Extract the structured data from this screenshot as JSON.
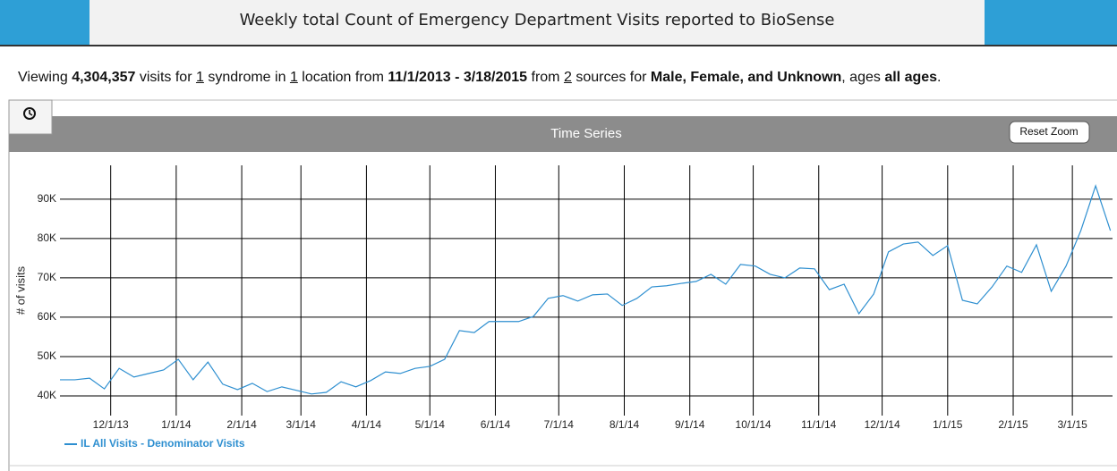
{
  "header": {
    "title": "Weekly total Count of Emergency Department Visits reported to BioSense"
  },
  "summary": [
    "Viewing",
    "4,304,357",
    "visits for",
    "1",
    "syndrome in",
    "1",
    "location from",
    "11/1/2013 - 3/18/2015",
    "from",
    "2",
    "sources for",
    "Male, Female, and Unknown",
    ", ages",
    "all ages",
    "."
  ],
  "panel": {
    "title": "Time Series",
    "reset_button": "Reset Zoom"
  },
  "chart_data": {
    "type": "line",
    "ylabel": "# of visits",
    "xlim": [
      "2013-11-07",
      "2015-03-20"
    ],
    "ylim": [
      35000,
      98600
    ],
    "xticks": [
      {
        "value": "2013-12-01",
        "label": "12/1/13"
      },
      {
        "value": "2014-01-01",
        "label": "1/1/14"
      },
      {
        "value": "2014-02-01",
        "label": "2/1/14"
      },
      {
        "value": "2014-03-01",
        "label": "3/1/14"
      },
      {
        "value": "2014-04-01",
        "label": "4/1/14"
      },
      {
        "value": "2014-05-01",
        "label": "5/1/14"
      },
      {
        "value": "2014-06-01",
        "label": "6/1/14"
      },
      {
        "value": "2014-07-01",
        "label": "7/1/14"
      },
      {
        "value": "2014-08-01",
        "label": "8/1/14"
      },
      {
        "value": "2014-09-01",
        "label": "9/1/14"
      },
      {
        "value": "2014-10-01",
        "label": "10/1/14"
      },
      {
        "value": "2014-11-01",
        "label": "11/1/14"
      },
      {
        "value": "2014-12-01",
        "label": "12/1/14"
      },
      {
        "value": "2015-01-01",
        "label": "1/1/15"
      },
      {
        "value": "2015-02-01",
        "label": "2/1/15"
      },
      {
        "value": "2015-03-01",
        "label": "3/1/15"
      }
    ],
    "yticks": [
      {
        "value": 40000,
        "label": "40K"
      },
      {
        "value": 50000,
        "label": "50K"
      },
      {
        "value": 60000,
        "label": "60K"
      },
      {
        "value": 70000,
        "label": "70K"
      },
      {
        "value": 80000,
        "label": "80K"
      },
      {
        "value": 90000,
        "label": "90K"
      }
    ],
    "grid": true,
    "x": [
      "2013-11-07",
      "2013-11-14",
      "2013-11-21",
      "2013-11-28",
      "2013-12-05",
      "2013-12-12",
      "2013-12-19",
      "2013-12-26",
      "2014-01-02",
      "2014-01-09",
      "2014-01-16",
      "2014-01-23",
      "2014-01-30",
      "2014-02-06",
      "2014-02-13",
      "2014-02-20",
      "2014-02-27",
      "2014-03-06",
      "2014-03-13",
      "2014-03-20",
      "2014-03-27",
      "2014-04-03",
      "2014-04-10",
      "2014-04-17",
      "2014-04-24",
      "2014-05-01",
      "2014-05-08",
      "2014-05-15",
      "2014-05-22",
      "2014-05-29",
      "2014-06-05",
      "2014-06-12",
      "2014-06-19",
      "2014-06-26",
      "2014-07-03",
      "2014-07-10",
      "2014-07-17",
      "2014-07-24",
      "2014-07-31",
      "2014-08-07",
      "2014-08-14",
      "2014-08-21",
      "2014-08-28",
      "2014-09-04",
      "2014-09-11",
      "2014-09-18",
      "2014-09-25",
      "2014-10-02",
      "2014-10-09",
      "2014-10-16",
      "2014-10-23",
      "2014-10-30",
      "2014-11-06",
      "2014-11-13",
      "2014-11-20",
      "2014-11-27",
      "2014-12-04",
      "2014-12-11",
      "2014-12-18",
      "2014-12-25",
      "2015-01-01",
      "2015-01-08",
      "2015-01-15",
      "2015-01-22",
      "2015-01-29",
      "2015-02-05",
      "2015-02-12",
      "2015-02-19",
      "2015-02-26",
      "2015-03-05",
      "2015-03-12",
      "2015-03-19"
    ],
    "series": [
      {
        "name": "IL All Visits - Denominator Visits",
        "color": "#2e8fd0",
        "values": [
          44100,
          44100,
          44500,
          41800,
          47000,
          44800,
          45700,
          46600,
          49300,
          44100,
          48600,
          43000,
          41600,
          43200,
          41100,
          42300,
          41400,
          40500,
          40900,
          43600,
          42300,
          43900,
          46100,
          45700,
          47000,
          47500,
          49300,
          56600,
          56100,
          58900,
          58900,
          58900,
          60200,
          64800,
          65500,
          64100,
          65700,
          65900,
          63000,
          64800,
          67700,
          68000,
          68600,
          69100,
          70900,
          68400,
          73400,
          73000,
          70900,
          70000,
          72500,
          72300,
          67000,
          68400,
          60900,
          65900,
          76600,
          78600,
          79100,
          75700,
          78200,
          64300,
          63400,
          67700,
          73000,
          71400,
          78400,
          66600,
          73000,
          82000,
          93400,
          82000
        ]
      }
    ]
  }
}
